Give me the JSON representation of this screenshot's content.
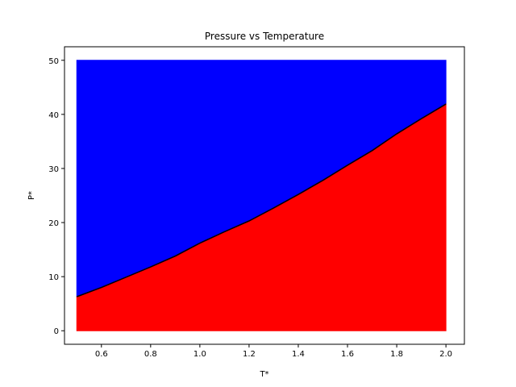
{
  "chart_data": {
    "type": "area",
    "title": "Pressure vs Temperature",
    "xlabel": "T*",
    "ylabel": "P*",
    "xlim": [
      0.45,
      2.075
    ],
    "ylim": [
      -2.5,
      52.5
    ],
    "xticks": [
      "0.6",
      "0.8",
      "1.0",
      "1.2",
      "1.4",
      "1.6",
      "1.8",
      "2.0"
    ],
    "yticks": [
      "0",
      "10",
      "20",
      "30",
      "40",
      "50"
    ],
    "grid": false,
    "series": [
      {
        "x": [
          0.5,
          0.6,
          0.7,
          0.8,
          0.9,
          1.0,
          1.1,
          1.2,
          1.3,
          1.4,
          1.5,
          1.6,
          1.7,
          1.8,
          1.9,
          2.0
        ],
        "y": [
          6.3,
          8.0,
          9.9,
          11.8,
          13.8,
          16.2,
          18.3,
          20.3,
          22.7,
          25.2,
          27.8,
          30.6,
          33.3,
          36.4,
          39.2,
          41.9
        ]
      }
    ],
    "fill_below": {
      "color": "#ff0000",
      "from": 0
    },
    "fill_above": {
      "color": "#0000ff",
      "to": 50
    },
    "line_color": "#000000"
  }
}
